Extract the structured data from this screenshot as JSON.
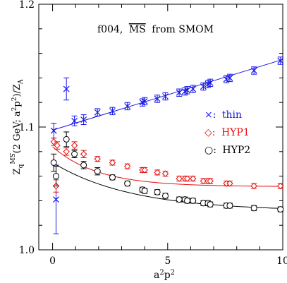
{
  "chart_data": {
    "type": "scatter",
    "title": "f004, MS from SMOM",
    "title_prefix": "f004,",
    "title_scheme": "MS",
    "title_suffix": "from SMOM",
    "xlabel": "a²p²",
    "ylabel": "Z_q^MS(2 GeV; a²p²)/Z_A",
    "ylabel_parts": {
      "Z": "Z",
      "sub": "q",
      "sup": "MS",
      "middle": "(2 GeV; a",
      "sq1": "2",
      "p": "p",
      "sq2": "2",
      "tail": ")/Z",
      "tail_sub": "A"
    },
    "xlim": [
      -0.6,
      10
    ],
    "ylim": [
      1.0,
      1.2
    ],
    "x_ticks": [
      0,
      5,
      10
    ],
    "y_ticks": [
      1.0,
      1.1,
      1.2
    ],
    "x_tick_labels": [
      "0",
      "5",
      "10"
    ],
    "y_tick_labels": [
      "1.0",
      "1.1",
      "1.2"
    ],
    "grid": false,
    "legend_position": "right-middle",
    "series": [
      {
        "name": "thin",
        "legend_label": "×: thin",
        "color": "#1515e6",
        "marker": "cross",
        "points": [
          {
            "x": 0.05,
            "y": 1.097,
            "err": 0.006
          },
          {
            "x": 0.15,
            "y": 1.041,
            "err": 0.028
          },
          {
            "x": 0.6,
            "y": 1.131,
            "err": 0.009
          },
          {
            "x": 0.95,
            "y": 1.105,
            "err": 0.004
          },
          {
            "x": 1.35,
            "y": 1.106,
            "err": 0.004
          },
          {
            "x": 1.95,
            "y": 1.112,
            "err": 0.003
          },
          {
            "x": 2.6,
            "y": 1.113,
            "err": 0.003
          },
          {
            "x": 3.25,
            "y": 1.117,
            "err": 0.003
          },
          {
            "x": 3.9,
            "y": 1.12,
            "err": 0.003
          },
          {
            "x": 4.0,
            "y": 1.121,
            "err": 0.003
          },
          {
            "x": 4.55,
            "y": 1.123,
            "err": 0.003
          },
          {
            "x": 4.9,
            "y": 1.125,
            "err": 0.003
          },
          {
            "x": 5.5,
            "y": 1.128,
            "err": 0.003
          },
          {
            "x": 5.75,
            "y": 1.129,
            "err": 0.003
          },
          {
            "x": 5.85,
            "y": 1.13,
            "err": 0.003
          },
          {
            "x": 6.1,
            "y": 1.131,
            "err": 0.003
          },
          {
            "x": 6.55,
            "y": 1.133,
            "err": 0.003
          },
          {
            "x": 6.75,
            "y": 1.135,
            "err": 0.003
          },
          {
            "x": 6.85,
            "y": 1.136,
            "err": 0.003
          },
          {
            "x": 7.55,
            "y": 1.139,
            "err": 0.003
          },
          {
            "x": 7.7,
            "y": 1.14,
            "err": 0.003
          },
          {
            "x": 8.75,
            "y": 1.146,
            "err": 0.003
          },
          {
            "x": 9.9,
            "y": 1.154,
            "err": 0.003
          }
        ],
        "fit": {
          "kind": "linear",
          "y0": 1.0975,
          "slope": 0.00575
        }
      },
      {
        "name": "HYP1",
        "legend_label": "◇: HYP1",
        "color": "#e60d0d",
        "marker": "diamond",
        "points": [
          {
            "x": 0.05,
            "y": 1.088,
            "err": 0.003
          },
          {
            "x": 0.15,
            "y": 1.052,
            "err": 0.005
          },
          {
            "x": 0.2,
            "y": 1.085,
            "err": 0.003
          },
          {
            "x": 0.6,
            "y": 1.08,
            "err": 0.003
          },
          {
            "x": 0.95,
            "y": 1.085,
            "err": 0.003
          },
          {
            "x": 1.35,
            "y": 1.078,
            "err": 0.003
          },
          {
            "x": 1.95,
            "y": 1.074,
            "err": 0.002
          },
          {
            "x": 2.6,
            "y": 1.071,
            "err": 0.002
          },
          {
            "x": 3.25,
            "y": 1.068,
            "err": 0.002
          },
          {
            "x": 3.9,
            "y": 1.065,
            "err": 0.002
          },
          {
            "x": 4.0,
            "y": 1.065,
            "err": 0.002
          },
          {
            "x": 4.55,
            "y": 1.063,
            "err": 0.002
          },
          {
            "x": 4.9,
            "y": 1.062,
            "err": 0.002
          },
          {
            "x": 5.5,
            "y": 1.058,
            "err": 0.002
          },
          {
            "x": 5.75,
            "y": 1.058,
            "err": 0.002
          },
          {
            "x": 5.85,
            "y": 1.058,
            "err": 0.002
          },
          {
            "x": 6.1,
            "y": 1.058,
            "err": 0.002
          },
          {
            "x": 6.55,
            "y": 1.056,
            "err": 0.002
          },
          {
            "x": 6.75,
            "y": 1.056,
            "err": 0.002
          },
          {
            "x": 6.85,
            "y": 1.056,
            "err": 0.002
          },
          {
            "x": 7.55,
            "y": 1.054,
            "err": 0.002
          },
          {
            "x": 7.7,
            "y": 1.054,
            "err": 0.002
          },
          {
            "x": 8.75,
            "y": 1.052,
            "err": 0.002
          },
          {
            "x": 9.9,
            "y": 1.052,
            "err": 0.002
          }
        ],
        "fit": {
          "kind": "exp",
          "a": 1.0515,
          "b": 0.0325,
          "k": 0.51
        }
      },
      {
        "name": "HYP2",
        "legend_label": "○: HYP2",
        "color": "#000000",
        "marker": "circle",
        "points": [
          {
            "x": 0.05,
            "y": 1.071,
            "err": 0.007
          },
          {
            "x": 0.15,
            "y": 1.06,
            "err": 0.008
          },
          {
            "x": 0.6,
            "y": 1.09,
            "err": 0.006
          },
          {
            "x": 0.95,
            "y": 1.078,
            "err": 0.003
          },
          {
            "x": 1.35,
            "y": 1.069,
            "err": 0.003
          },
          {
            "x": 1.95,
            "y": 1.064,
            "err": 0.003
          },
          {
            "x": 2.6,
            "y": 1.059,
            "err": 0.002
          },
          {
            "x": 3.25,
            "y": 1.054,
            "err": 0.002
          },
          {
            "x": 3.9,
            "y": 1.049,
            "err": 0.002
          },
          {
            "x": 4.0,
            "y": 1.048,
            "err": 0.002
          },
          {
            "x": 4.55,
            "y": 1.047,
            "err": 0.002
          },
          {
            "x": 4.9,
            "y": 1.044,
            "err": 0.002
          },
          {
            "x": 5.5,
            "y": 1.041,
            "err": 0.002
          },
          {
            "x": 5.75,
            "y": 1.041,
            "err": 0.002
          },
          {
            "x": 5.85,
            "y": 1.04,
            "err": 0.002
          },
          {
            "x": 6.1,
            "y": 1.04,
            "err": 0.002
          },
          {
            "x": 6.55,
            "y": 1.038,
            "err": 0.002
          },
          {
            "x": 6.75,
            "y": 1.038,
            "err": 0.002
          },
          {
            "x": 6.85,
            "y": 1.037,
            "err": 0.002
          },
          {
            "x": 7.55,
            "y": 1.036,
            "err": 0.002
          },
          {
            "x": 7.7,
            "y": 1.036,
            "err": 0.002
          },
          {
            "x": 8.75,
            "y": 1.034,
            "err": 0.002
          },
          {
            "x": 9.9,
            "y": 1.033,
            "err": 0.002
          }
        ],
        "fit": {
          "kind": "exp",
          "a": 1.0315,
          "b": 0.0395,
          "k": 0.29
        }
      }
    ]
  },
  "legend": {
    "thin": {
      "glyph": "×",
      "sep": ":",
      "label": "thin"
    },
    "hyp1": {
      "glyph": "◇",
      "sep": ":",
      "label": "HYP1"
    },
    "hyp2": {
      "glyph": "○",
      "sep": ":",
      "label": "HYP2"
    }
  }
}
